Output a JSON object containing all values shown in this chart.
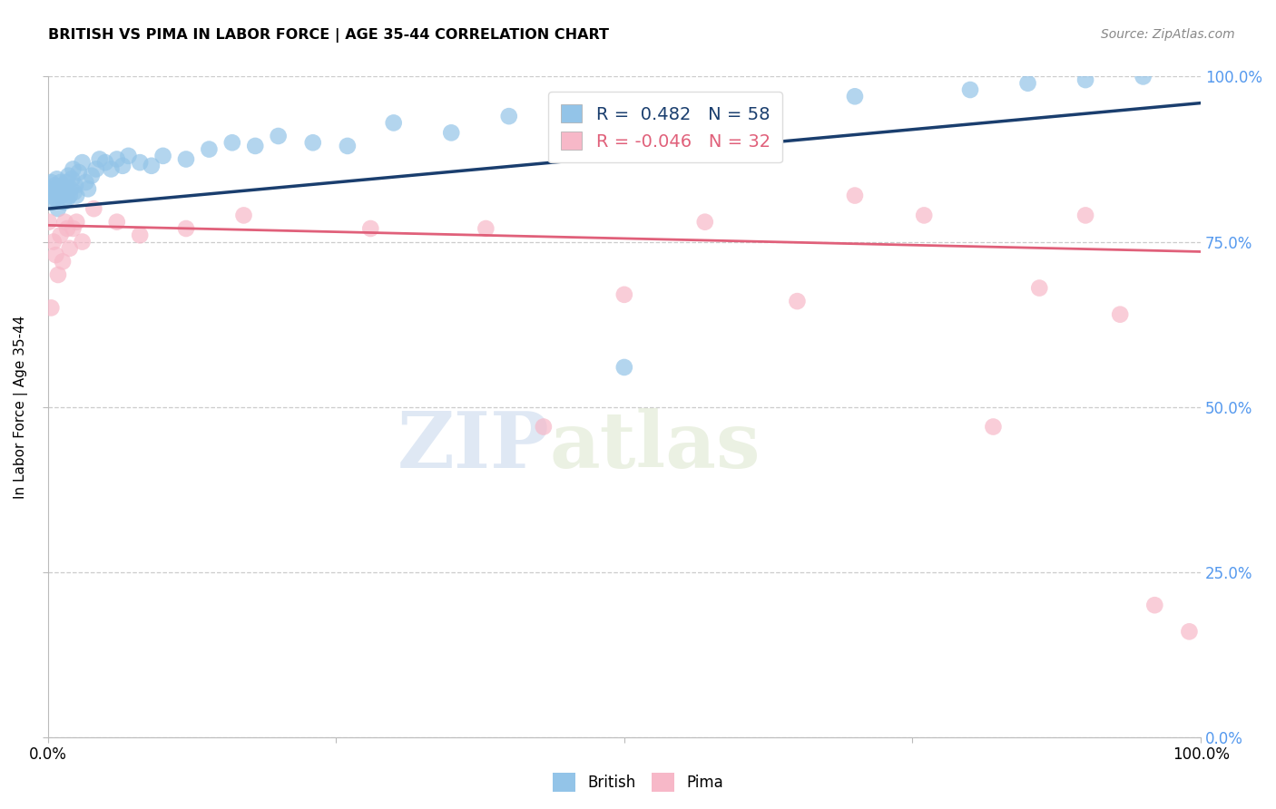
{
  "title": "BRITISH VS PIMA IN LABOR FORCE | AGE 35-44 CORRELATION CHART",
  "source": "Source: ZipAtlas.com",
  "ylabel": "In Labor Force | Age 35-44",
  "watermark_zip": "ZIP",
  "watermark_atlas": "atlas",
  "legend_british": "British",
  "legend_pima": "Pima",
  "british_R": 0.482,
  "british_N": 58,
  "pima_R": -0.046,
  "pima_N": 32,
  "xlim": [
    0.0,
    1.0
  ],
  "ylim": [
    0.0,
    1.0
  ],
  "ytick_vals": [
    0.0,
    0.25,
    0.5,
    0.75,
    1.0
  ],
  "ytick_labels": [
    "0.0%",
    "25.0%",
    "50.0%",
    "75.0%",
    "100.0%"
  ],
  "xtick_vals": [
    0.0,
    0.25,
    0.5,
    0.75,
    1.0
  ],
  "xtick_labels": [
    "0.0%",
    "",
    "",
    "",
    "100.0%"
  ],
  "grid_color": "#cccccc",
  "british_color": "#93c4e8",
  "pima_color": "#f7b8c8",
  "british_line_color": "#1a3e6e",
  "pima_line_color": "#e0607a",
  "right_tick_color": "#5599ee",
  "british_x": [
    0.001,
    0.002,
    0.003,
    0.004,
    0.005,
    0.006,
    0.007,
    0.008,
    0.009,
    0.01,
    0.011,
    0.012,
    0.013,
    0.014,
    0.015,
    0.016,
    0.017,
    0.018,
    0.019,
    0.02,
    0.021,
    0.022,
    0.023,
    0.024,
    0.025,
    0.027,
    0.03,
    0.033,
    0.035,
    0.038,
    0.042,
    0.045,
    0.05,
    0.055,
    0.06,
    0.065,
    0.07,
    0.08,
    0.09,
    0.1,
    0.12,
    0.14,
    0.16,
    0.18,
    0.2,
    0.23,
    0.26,
    0.3,
    0.35,
    0.4,
    0.45,
    0.5,
    0.6,
    0.7,
    0.8,
    0.85,
    0.9,
    0.95
  ],
  "british_y": [
    0.83,
    0.82,
    0.84,
    0.81,
    0.825,
    0.835,
    0.815,
    0.845,
    0.8,
    0.83,
    0.84,
    0.82,
    0.835,
    0.81,
    0.825,
    0.84,
    0.815,
    0.85,
    0.82,
    0.83,
    0.845,
    0.86,
    0.825,
    0.835,
    0.82,
    0.855,
    0.87,
    0.84,
    0.83,
    0.85,
    0.86,
    0.875,
    0.87,
    0.86,
    0.875,
    0.865,
    0.88,
    0.87,
    0.865,
    0.88,
    0.875,
    0.89,
    0.9,
    0.895,
    0.91,
    0.9,
    0.895,
    0.93,
    0.915,
    0.94,
    0.945,
    0.56,
    0.96,
    0.97,
    0.98,
    0.99,
    0.995,
    1.0
  ],
  "pima_x": [
    0.001,
    0.003,
    0.005,
    0.007,
    0.009,
    0.011,
    0.013,
    0.015,
    0.017,
    0.019,
    0.022,
    0.025,
    0.03,
    0.04,
    0.06,
    0.08,
    0.12,
    0.17,
    0.28,
    0.38,
    0.43,
    0.5,
    0.57,
    0.65,
    0.7,
    0.76,
    0.82,
    0.86,
    0.9,
    0.93,
    0.96,
    0.99
  ],
  "pima_y": [
    0.78,
    0.65,
    0.75,
    0.73,
    0.7,
    0.76,
    0.72,
    0.78,
    0.77,
    0.74,
    0.77,
    0.78,
    0.75,
    0.8,
    0.78,
    0.76,
    0.77,
    0.79,
    0.77,
    0.77,
    0.47,
    0.67,
    0.78,
    0.66,
    0.82,
    0.79,
    0.47,
    0.68,
    0.79,
    0.64,
    0.2,
    0.16
  ],
  "pima_line_y0": 0.775,
  "pima_line_y1": 0.735,
  "british_line_y0": 0.8,
  "british_line_y1": 0.96
}
